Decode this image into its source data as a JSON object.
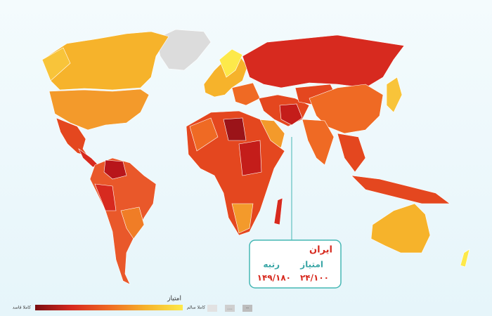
{
  "tooltip": {
    "country": "ایران",
    "score_label": "امتیاز",
    "rank_label": "رتبه",
    "score": "۲۴/۱۰۰",
    "rank": "۱۴۹/۱۸۰"
  },
  "legend": {
    "title": "امتیاز",
    "high_label": "کاملا سالم",
    "low_label": "کاملا فاسد",
    "extra_labels": [
      "....",
      "--"
    ]
  }
}
